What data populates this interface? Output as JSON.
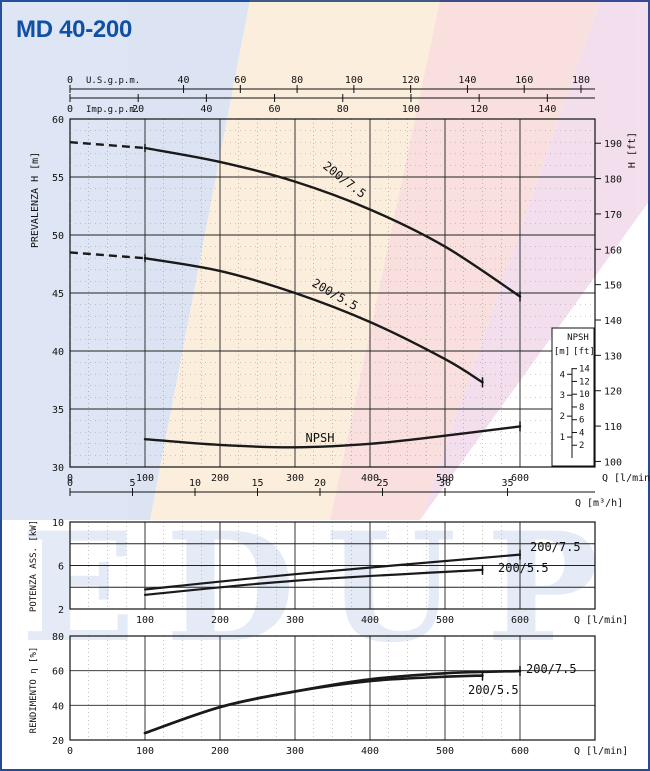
{
  "page": {
    "title": "MD 40-200"
  },
  "colors": {
    "brand": "#0b4fa0",
    "curve": "#1a1a1a",
    "grid": "#555555"
  },
  "watermark": {
    "text": "EDUP",
    "colors": [
      "#f29a30",
      "#e0453a",
      "#b33a8c",
      "#2f5fb8"
    ]
  },
  "chart_data": [
    {
      "id": "head",
      "type": "line",
      "ylabel": "PREVALENZA H [m]",
      "ylim": [
        30,
        60
      ],
      "y_ticks": [
        30,
        35,
        40,
        45,
        50,
        55,
        60
      ],
      "y2label": "H [ft]",
      "y2_ticks": [
        100,
        110,
        120,
        130,
        140,
        150,
        160,
        170,
        180,
        190
      ],
      "xlim": [
        0,
        600
      ],
      "x_ticks": [
        0,
        100,
        200,
        300,
        400,
        500,
        600
      ],
      "xlabel": "Q [l/min]",
      "x_top_usgpm": {
        "label": "U.S.g.p.m.",
        "ticks": [
          0,
          40,
          60,
          80,
          100,
          120,
          140,
          160,
          180
        ]
      },
      "x_top_impgpm": {
        "label": "Imp.g.p.m.",
        "ticks": [
          0,
          20,
          40,
          60,
          80,
          100,
          120,
          140
        ]
      },
      "x_m3h": {
        "label": "Q [m³/h]",
        "ticks": [
          0,
          5,
          10,
          15,
          20,
          25,
          30,
          35
        ]
      },
      "series": [
        {
          "name": "200/7.5",
          "x": [
            0,
            100,
            200,
            300,
            400,
            500,
            600
          ],
          "y": [
            58.0,
            57.5,
            56.3,
            54.6,
            52.2,
            49.0,
            44.7
          ],
          "dashed_until": 100
        },
        {
          "name": "200/5.5",
          "x": [
            0,
            100,
            200,
            300,
            400,
            500,
            550
          ],
          "y": [
            48.5,
            48.0,
            46.9,
            45.0,
            42.5,
            39.3,
            37.3
          ],
          "dashed_until": 100
        },
        {
          "name": "NPSH",
          "x": [
            100,
            200,
            300,
            400,
            500,
            600
          ],
          "y": [
            32.4,
            31.9,
            31.7,
            32.0,
            32.7,
            33.5
          ]
        }
      ],
      "npsh_scale": {
        "title": "NPSH",
        "units": [
          "[m]",
          "[ft]"
        ],
        "m_ticks": [
          1,
          2,
          3,
          4
        ],
        "ft_ticks": [
          2,
          4,
          6,
          8,
          10,
          12,
          14
        ]
      }
    },
    {
      "id": "power",
      "type": "line",
      "ylabel": "POTENZA ASS. [kW]",
      "ylim": [
        2,
        10
      ],
      "y_ticks": [
        2,
        6,
        10
      ],
      "xlim": [
        0,
        600
      ],
      "x_ticks": [
        100,
        200,
        300,
        400,
        500,
        600
      ],
      "xlabel": "Q [l/min]",
      "series": [
        {
          "name": "200/7.5",
          "x": [
            100,
            300,
            600
          ],
          "y": [
            3.8,
            5.2,
            7.0
          ]
        },
        {
          "name": "200/5.5",
          "x": [
            100,
            300,
            550
          ],
          "y": [
            3.3,
            4.6,
            5.6
          ]
        }
      ]
    },
    {
      "id": "efficiency",
      "type": "line",
      "ylabel": "RENDIMENTO η [%]",
      "ylim": [
        20,
        80
      ],
      "y_ticks": [
        20,
        40,
        60,
        80
      ],
      "xlim": [
        0,
        600
      ],
      "x_ticks": [
        0,
        100,
        200,
        300,
        400,
        500,
        600
      ],
      "xlabel": "Q [l/min]",
      "series": [
        {
          "name": "200/7.5",
          "x": [
            100,
            200,
            300,
            400,
            500,
            600
          ],
          "y": [
            24,
            39,
            48,
            55,
            58.5,
            59.8
          ]
        },
        {
          "name": "200/5.5",
          "x": [
            100,
            200,
            300,
            400,
            500,
            550
          ],
          "y": [
            24,
            39,
            48,
            54,
            56.5,
            57.2
          ]
        }
      ]
    }
  ]
}
